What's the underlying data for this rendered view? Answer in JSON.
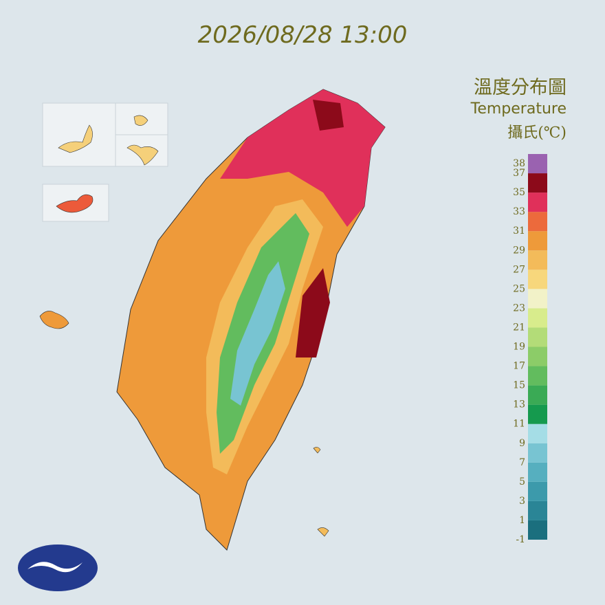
{
  "header": {
    "timestamp": "2026/08/28 13:00"
  },
  "legend": {
    "title": "溫度分布圖",
    "subtitle": "Temperature",
    "unit": "攝氏(℃)",
    "range": [
      -1,
      39
    ],
    "ticks": [
      38,
      37,
      35,
      33,
      31,
      29,
      27,
      25,
      23,
      21,
      19,
      17,
      15,
      13,
      11,
      9,
      7,
      5,
      3,
      1,
      -1
    ],
    "bins": [
      -1,
      1,
      3,
      5,
      7,
      9,
      11,
      13,
      15,
      17,
      19,
      21,
      23,
      25,
      27,
      29,
      31,
      33,
      35,
      37,
      39
    ],
    "colors": [
      "#1b6f7e",
      "#2a8596",
      "#3c9aab",
      "#56afbf",
      "#78c4d2",
      "#a5dde6",
      "#159a4e",
      "#3aaa55",
      "#62bc5e",
      "#8ccc68",
      "#b3dc78",
      "#d8ec8c",
      "#f2f2c8",
      "#f7d77c",
      "#f3bb5a",
      "#ee9a3a",
      "#ec6a3c",
      "#e0305a",
      "#8c0a1a",
      "#9a62b0"
    ]
  }
}
